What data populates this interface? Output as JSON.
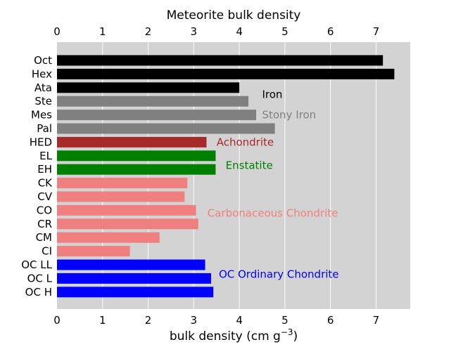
{
  "chart_data": {
    "type": "bar",
    "orientation": "horizontal",
    "title": "Meteorite bulk density",
    "xlabel": "bulk density (cm g",
    "xlabel_superscript": "−3",
    "xlabel_suffix": ")",
    "ylabel": "",
    "xlim": [
      0,
      7.75
    ],
    "xticks": [
      0,
      1,
      2,
      3,
      4,
      5,
      6,
      7
    ],
    "grid": true,
    "background": "#d3d3d3",
    "categories": [
      "Oct",
      "Hex",
      "Ata",
      "Ste",
      "Mes",
      "Pal",
      "HED",
      "EL",
      "EH",
      "CK",
      "CV",
      "CO",
      "CR",
      "CM",
      "CI",
      "OC LL",
      "OC L",
      "OC H"
    ],
    "values": [
      7.15,
      7.4,
      4.0,
      4.2,
      4.37,
      4.78,
      3.28,
      3.48,
      3.48,
      2.86,
      2.8,
      3.05,
      3.1,
      2.25,
      1.6,
      3.25,
      3.38,
      3.43
    ],
    "colors": [
      "#000000",
      "#000000",
      "#000000",
      "#808080",
      "#808080",
      "#808080",
      "#a52a2a",
      "#008000",
      "#008000",
      "#f08080",
      "#f08080",
      "#f08080",
      "#f08080",
      "#f08080",
      "#f08080",
      "#0000ff",
      "#0000ff",
      "#0000ff"
    ],
    "annotations": [
      {
        "text": "Iron",
        "x": 4.5,
        "row": 2.5,
        "color": "#000000"
      },
      {
        "text": "Stony Iron",
        "x": 4.5,
        "row": 4,
        "color": "#808080"
      },
      {
        "text": "Achondrite",
        "x": 3.5,
        "row": 6,
        "color": "#a52a2a"
      },
      {
        "text": "Enstatite",
        "x": 3.7,
        "row": 7.7,
        "color": "#008000"
      },
      {
        "text": "Carbonaceous Chondrite",
        "x": 3.3,
        "row": 11.2,
        "color": "#f08080"
      },
      {
        "text": "OC Ordinary Chondrite",
        "x": 3.55,
        "row": 15.7,
        "color": "#0000ff"
      }
    ]
  }
}
